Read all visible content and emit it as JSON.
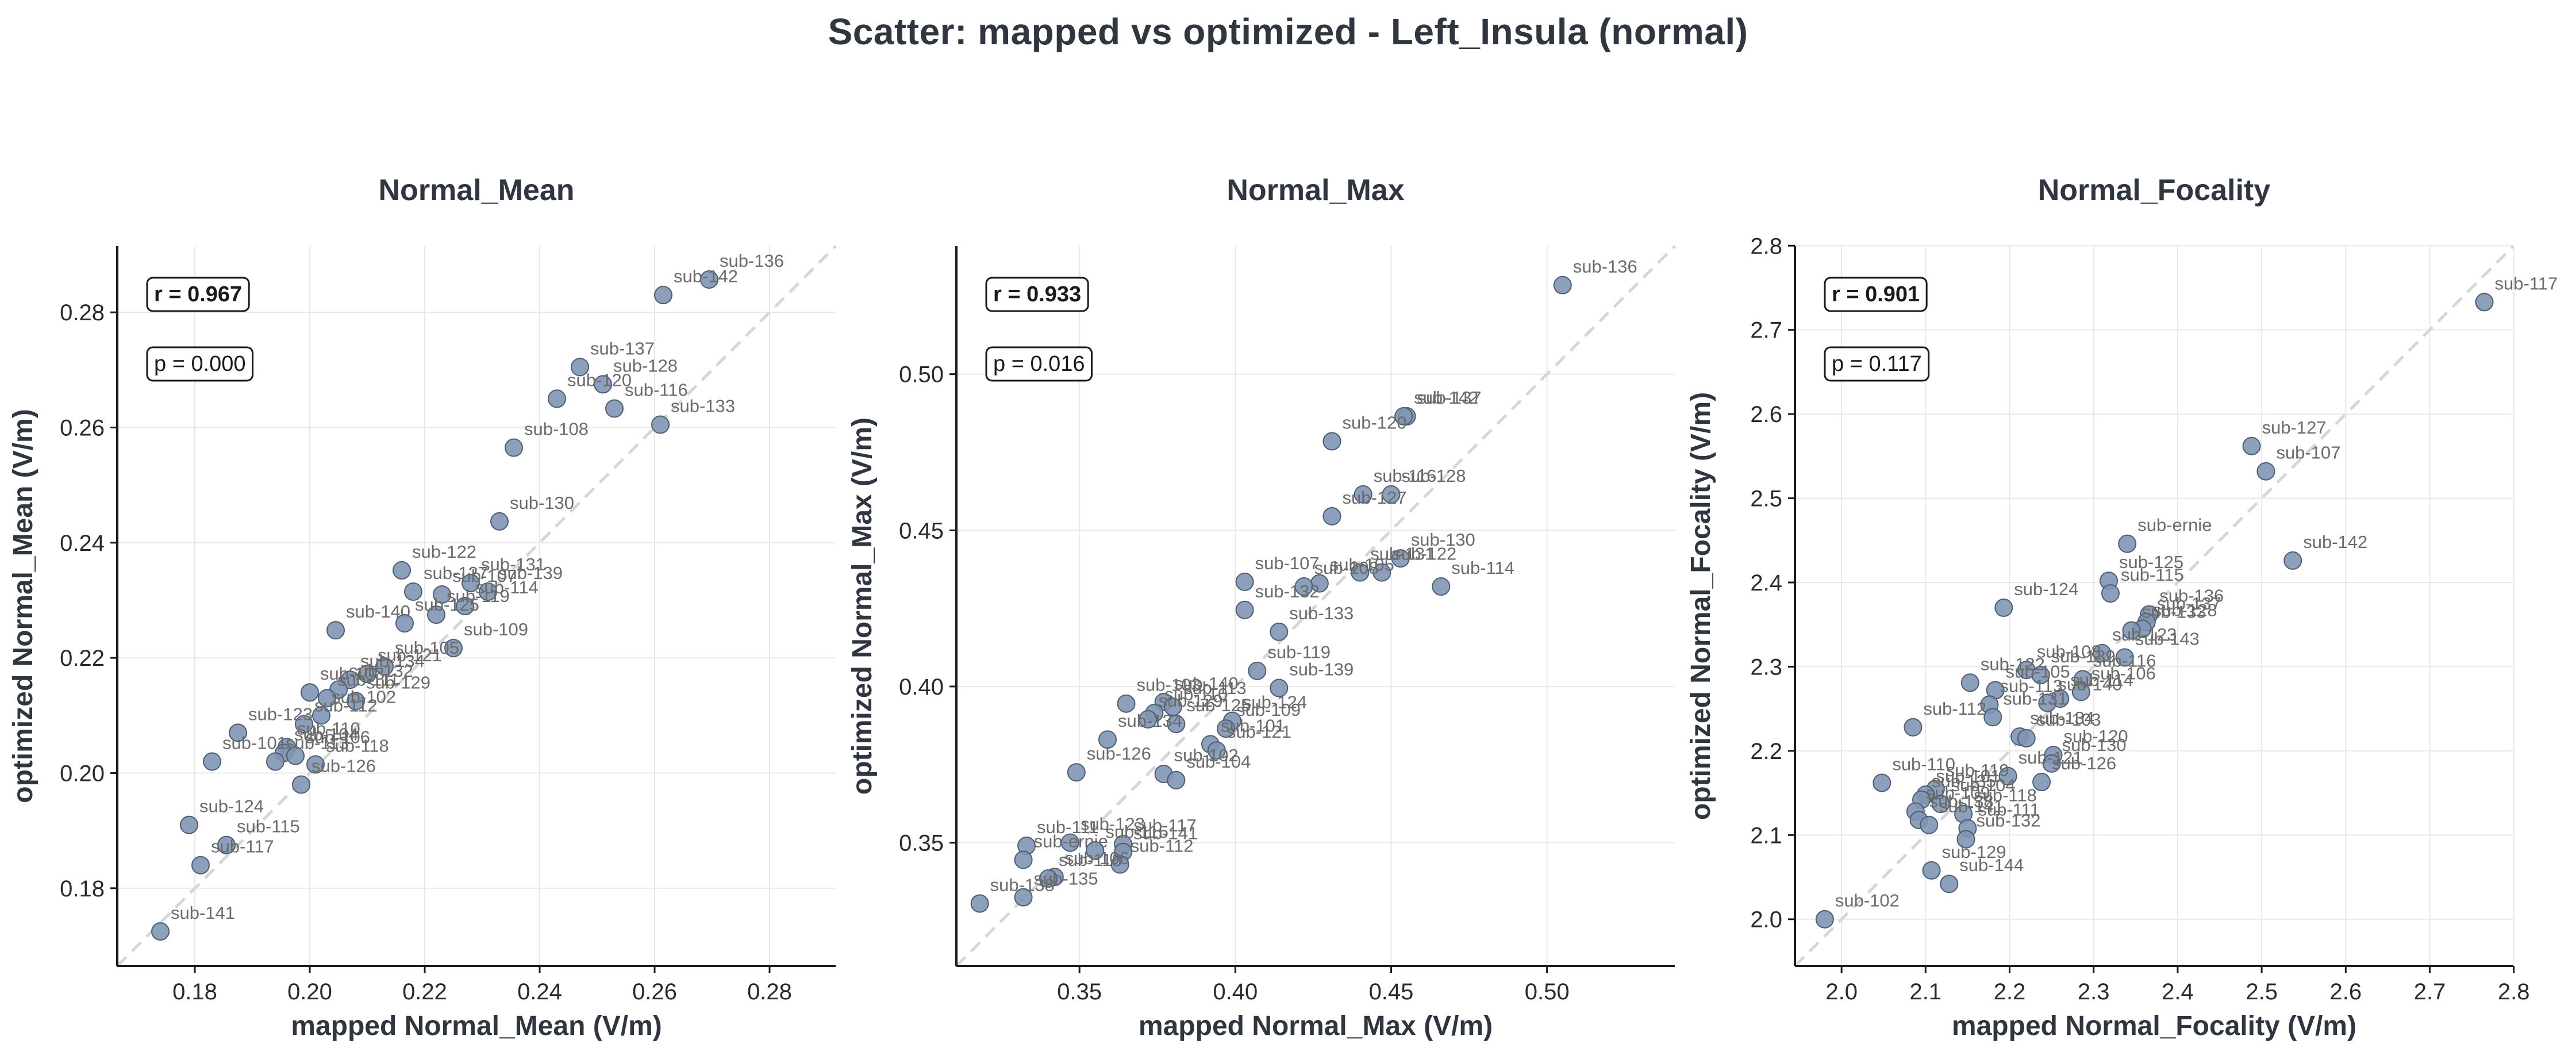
{
  "figure": {
    "title": "Scatter: mapped vs optimized - Left_Insula (normal)"
  },
  "colors": {
    "point_fill": "#8095b4",
    "point_stroke": "#4e5d73",
    "grid": "#e8e8e8",
    "diagonal": "#d6d6d6",
    "axis": "#1a1a1a",
    "title_text": "#2f3640"
  },
  "chart_data": [
    {
      "type": "scatter",
      "title": "Normal_Mean",
      "xlabel": "mapped Normal_Mean (V/m)",
      "ylabel": "optimized Normal_Mean (V/m)",
      "xlim": [
        0.1665,
        0.2915
      ],
      "ylim": [
        0.1665,
        0.2915
      ],
      "xticks": [
        0.18,
        0.2,
        0.22,
        0.24,
        0.26,
        0.28
      ],
      "yticks": [
        0.18,
        0.2,
        0.22,
        0.24,
        0.26,
        0.28
      ],
      "tick_format": "0.00",
      "grid": true,
      "identity_line": true,
      "stats": {
        "r": "r = 0.967",
        "p": "p = 0.000"
      },
      "points": [
        {
          "label": "sub-136",
          "x": 0.2695,
          "y": 0.2857
        },
        {
          "label": "sub-142",
          "x": 0.2615,
          "y": 0.283
        },
        {
          "label": "sub-137",
          "x": 0.247,
          "y": 0.2705
        },
        {
          "label": "sub-128",
          "x": 0.251,
          "y": 0.2675
        },
        {
          "label": "sub-120",
          "x": 0.243,
          "y": 0.265
        },
        {
          "label": "sub-116",
          "x": 0.253,
          "y": 0.2633
        },
        {
          "label": "sub-133",
          "x": 0.261,
          "y": 0.2605
        },
        {
          "label": "sub-108",
          "x": 0.2355,
          "y": 0.2565
        },
        {
          "label": "sub-130",
          "x": 0.233,
          "y": 0.2437
        },
        {
          "label": "sub-122",
          "x": 0.216,
          "y": 0.2352
        },
        {
          "label": "sub-127",
          "x": 0.218,
          "y": 0.2315
        },
        {
          "label": "sub-131",
          "x": 0.228,
          "y": 0.233
        },
        {
          "label": "sub-107",
          "x": 0.223,
          "y": 0.231
        },
        {
          "label": "sub-139",
          "x": 0.231,
          "y": 0.2315
        },
        {
          "label": "sub-114",
          "x": 0.227,
          "y": 0.229
        },
        {
          "label": "sub-119",
          "x": 0.222,
          "y": 0.2275
        },
        {
          "label": "sub-140",
          "x": 0.2045,
          "y": 0.2248
        },
        {
          "label": "sub-125",
          "x": 0.2165,
          "y": 0.226
        },
        {
          "label": "sub-109",
          "x": 0.225,
          "y": 0.2217
        },
        {
          "label": "sub-105",
          "x": 0.213,
          "y": 0.2185
        },
        {
          "label": "sub-121",
          "x": 0.21,
          "y": 0.2172
        },
        {
          "label": "sub-134",
          "x": 0.207,
          "y": 0.2162
        },
        {
          "label": "sub-132",
          "x": 0.205,
          "y": 0.2145
        },
        {
          "label": "sub-103",
          "x": 0.2,
          "y": 0.214
        },
        {
          "label": "sub-111",
          "x": 0.203,
          "y": 0.213
        },
        {
          "label": "sub-129",
          "x": 0.208,
          "y": 0.2125
        },
        {
          "label": "sub-102",
          "x": 0.202,
          "y": 0.21
        },
        {
          "label": "sub-112",
          "x": 0.199,
          "y": 0.2085
        },
        {
          "label": "sub-123",
          "x": 0.1875,
          "y": 0.207
        },
        {
          "label": "sub-110",
          "x": 0.196,
          "y": 0.2045
        },
        {
          "label": "sub-104",
          "x": 0.1955,
          "y": 0.2035
        },
        {
          "label": "sub-106",
          "x": 0.1975,
          "y": 0.203
        },
        {
          "label": "sub-101",
          "x": 0.183,
          "y": 0.202
        },
        {
          "label": "sub-113",
          "x": 0.194,
          "y": 0.202
        },
        {
          "label": "sub-118",
          "x": 0.201,
          "y": 0.2015
        },
        {
          "label": "sub-126",
          "x": 0.1985,
          "y": 0.198
        },
        {
          "label": "sub-124",
          "x": 0.179,
          "y": 0.191
        },
        {
          "label": "sub-115",
          "x": 0.1855,
          "y": 0.1875
        },
        {
          "label": "sub-117",
          "x": 0.181,
          "y": 0.184
        },
        {
          "label": "sub-141",
          "x": 0.174,
          "y": 0.1725
        }
      ]
    },
    {
      "type": "scatter",
      "title": "Normal_Max",
      "xlabel": "mapped Normal_Max (V/m)",
      "ylabel": "optimized Normal_Max (V/m)",
      "xlim": [
        0.3105,
        0.541
      ],
      "ylim": [
        0.3105,
        0.541
      ],
      "xticks": [
        0.35,
        0.4,
        0.45,
        0.5
      ],
      "yticks": [
        0.35,
        0.4,
        0.45,
        0.5
      ],
      "tick_format": "0.00",
      "grid": true,
      "identity_line": true,
      "stats": {
        "r": "r = 0.933",
        "p": "p = 0.016"
      },
      "points": [
        {
          "label": "sub-136",
          "x": 0.505,
          "y": 0.5285
        },
        {
          "label": "sub-137",
          "x": 0.455,
          "y": 0.4865
        },
        {
          "label": "sub-142",
          "x": 0.454,
          "y": 0.4865
        },
        {
          "label": "sub-120",
          "x": 0.431,
          "y": 0.4785
        },
        {
          "label": "sub-116",
          "x": 0.441,
          "y": 0.4615
        },
        {
          "label": "sub-128",
          "x": 0.45,
          "y": 0.4615
        },
        {
          "label": "sub-127",
          "x": 0.431,
          "y": 0.4545
        },
        {
          "label": "sub-130",
          "x": 0.453,
          "y": 0.441
        },
        {
          "label": "sub-131",
          "x": 0.44,
          "y": 0.4365
        },
        {
          "label": "sub-122",
          "x": 0.447,
          "y": 0.4365
        },
        {
          "label": "sub-107",
          "x": 0.403,
          "y": 0.4335
        },
        {
          "label": "sub-114",
          "x": 0.466,
          "y": 0.432
        },
        {
          "label": "sub-105",
          "x": 0.427,
          "y": 0.433
        },
        {
          "label": "sub-108",
          "x": 0.422,
          "y": 0.432
        },
        {
          "label": "sub-132",
          "x": 0.403,
          "y": 0.4245
        },
        {
          "label": "sub-133",
          "x": 0.414,
          "y": 0.4175
        },
        {
          "label": "sub-119",
          "x": 0.407,
          "y": 0.405
        },
        {
          "label": "sub-139",
          "x": 0.414,
          "y": 0.3995
        },
        {
          "label": "sub-103",
          "x": 0.365,
          "y": 0.3945
        },
        {
          "label": "sub-140",
          "x": 0.377,
          "y": 0.395
        },
        {
          "label": "sub-113",
          "x": 0.38,
          "y": 0.3935
        },
        {
          "label": "sub-110",
          "x": 0.374,
          "y": 0.3915
        },
        {
          "label": "sub-129",
          "x": 0.372,
          "y": 0.3895
        },
        {
          "label": "sub-125",
          "x": 0.381,
          "y": 0.388
        },
        {
          "label": "sub-124",
          "x": 0.399,
          "y": 0.389
        },
        {
          "label": "sub-109",
          "x": 0.397,
          "y": 0.3865
        },
        {
          "label": "sub-134",
          "x": 0.359,
          "y": 0.383
        },
        {
          "label": "sub-101",
          "x": 0.392,
          "y": 0.3815
        },
        {
          "label": "sub-121",
          "x": 0.394,
          "y": 0.3795
        },
        {
          "label": "sub-102",
          "x": 0.377,
          "y": 0.372
        },
        {
          "label": "sub-104",
          "x": 0.381,
          "y": 0.37
        },
        {
          "label": "sub-126",
          "x": 0.349,
          "y": 0.3725
        },
        {
          "label": "sub-111",
          "x": 0.333,
          "y": 0.349
        },
        {
          "label": "sub-123",
          "x": 0.347,
          "y": 0.35
        },
        {
          "label": "sub-117",
          "x": 0.364,
          "y": 0.3495
        },
        {
          "label": "sub-ernie",
          "x": 0.332,
          "y": 0.3445
        },
        {
          "label": "sub-115",
          "x": 0.355,
          "y": 0.3475
        },
        {
          "label": "sub-141",
          "x": 0.364,
          "y": 0.347
        },
        {
          "label": "sub-112",
          "x": 0.363,
          "y": 0.343
        },
        {
          "label": "sub-106",
          "x": 0.342,
          "y": 0.339
        },
        {
          "label": "sub-118",
          "x": 0.34,
          "y": 0.3385
        },
        {
          "label": "sub-135",
          "x": 0.332,
          "y": 0.3325
        },
        {
          "label": "sub-138",
          "x": 0.318,
          "y": 0.3305
        }
      ]
    },
    {
      "type": "scatter",
      "title": "Normal_Focality",
      "xlabel": "mapped Normal_Focality (V/m)",
      "ylabel": "optimized Normal_Focality (V/m)",
      "xlim": [
        1.9445,
        2.7995
      ],
      "ylim": [
        1.9445,
        2.7995
      ],
      "xticks": [
        2.0,
        2.1,
        2.2,
        2.3,
        2.4,
        2.5,
        2.6,
        2.7,
        2.8
      ],
      "yticks": [
        2.0,
        2.1,
        2.2,
        2.3,
        2.4,
        2.5,
        2.6,
        2.7,
        2.8
      ],
      "tick_format": "0.0",
      "grid": true,
      "identity_line": true,
      "stats": {
        "r": "r = 0.901",
        "p": "p = 0.117"
      },
      "points": [
        {
          "label": "sub-117",
          "x": 2.765,
          "y": 2.733
        },
        {
          "label": "sub-127",
          "x": 2.488,
          "y": 2.562
        },
        {
          "label": "sub-107",
          "x": 2.505,
          "y": 2.532
        },
        {
          "label": "sub-ernie",
          "x": 2.34,
          "y": 2.446
        },
        {
          "label": "sub-142",
          "x": 2.537,
          "y": 2.426
        },
        {
          "label": "sub-125",
          "x": 2.318,
          "y": 2.402
        },
        {
          "label": "sub-115",
          "x": 2.32,
          "y": 2.387
        },
        {
          "label": "sub-124",
          "x": 2.193,
          "y": 2.37
        },
        {
          "label": "sub-136",
          "x": 2.366,
          "y": 2.362
        },
        {
          "label": "sub-137",
          "x": 2.363,
          "y": 2.353
        },
        {
          "label": "sub-128",
          "x": 2.358,
          "y": 2.345
        },
        {
          "label": "sub-133",
          "x": 2.345,
          "y": 2.343
        },
        {
          "label": "sub-123",
          "x": 2.31,
          "y": 2.316
        },
        {
          "label": "sub-143",
          "x": 2.337,
          "y": 2.311
        },
        {
          "label": "sub-108",
          "x": 2.22,
          "y": 2.296
        },
        {
          "label": "sub-139",
          "x": 2.237,
          "y": 2.29
        },
        {
          "label": "sub-116",
          "x": 2.287,
          "y": 2.285
        },
        {
          "label": "sub-122",
          "x": 2.153,
          "y": 2.281
        },
        {
          "label": "sub-106",
          "x": 2.285,
          "y": 2.27
        },
        {
          "label": "sub-105",
          "x": 2.183,
          "y": 2.272
        },
        {
          "label": "sub-114",
          "x": 2.26,
          "y": 2.262
        },
        {
          "label": "sub-140",
          "x": 2.245,
          "y": 2.257
        },
        {
          "label": "sub-113",
          "x": 2.176,
          "y": 2.255
        },
        {
          "label": "sub-112",
          "x": 2.085,
          "y": 2.228
        },
        {
          "label": "sub-131",
          "x": 2.18,
          "y": 2.24
        },
        {
          "label": "sub-134",
          "x": 2.212,
          "y": 2.217
        },
        {
          "label": "sub-103",
          "x": 2.22,
          "y": 2.215
        },
        {
          "label": "sub-120",
          "x": 2.252,
          "y": 2.195
        },
        {
          "label": "sub-130",
          "x": 2.25,
          "y": 2.185
        },
        {
          "label": "sub-121",
          "x": 2.198,
          "y": 2.17
        },
        {
          "label": "sub-110",
          "x": 2.048,
          "y": 2.162
        },
        {
          "label": "sub-126",
          "x": 2.238,
          "y": 2.163
        },
        {
          "label": "sub-119",
          "x": 2.112,
          "y": 2.155
        },
        {
          "label": "sub-101",
          "x": 2.1,
          "y": 2.148
        },
        {
          "label": "sub-135",
          "x": 2.095,
          "y": 2.142
        },
        {
          "label": "sub-104",
          "x": 2.118,
          "y": 2.137
        },
        {
          "label": "sub-109",
          "x": 2.088,
          "y": 2.128
        },
        {
          "label": "sub-118",
          "x": 2.145,
          "y": 2.125
        },
        {
          "label": "sub-138",
          "x": 2.092,
          "y": 2.118
        },
        {
          "label": "sub-141",
          "x": 2.104,
          "y": 2.112
        },
        {
          "label": "sub-111",
          "x": 2.15,
          "y": 2.108
        },
        {
          "label": "sub-132",
          "x": 2.148,
          "y": 2.095
        },
        {
          "label": "sub-129",
          "x": 2.107,
          "y": 2.058
        },
        {
          "label": "sub-144",
          "x": 2.128,
          "y": 2.042
        },
        {
          "label": "sub-102",
          "x": 1.98,
          "y": 2.0
        }
      ]
    }
  ]
}
